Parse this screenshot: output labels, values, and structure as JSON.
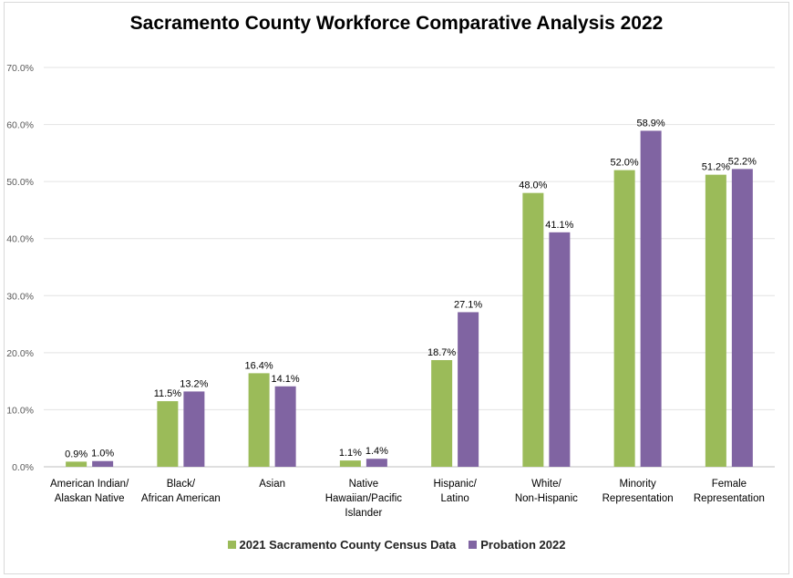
{
  "chart_data": {
    "type": "bar",
    "title": "Sacramento County Workforce Comparative Analysis 2022",
    "categories": [
      [
        "American Indian/",
        "Alaskan Native"
      ],
      [
        "Black/",
        "African American"
      ],
      [
        "Asian"
      ],
      [
        "Native",
        "Hawaiian/Pacific",
        "Islander"
      ],
      [
        "Hispanic/",
        "Latino"
      ],
      [
        "White/",
        "Non-Hispanic"
      ],
      [
        "Minority",
        "Representation"
      ],
      [
        "Female",
        "Representation"
      ]
    ],
    "series": [
      {
        "name": "2021 Sacramento County Census Data",
        "color": "#9BBB59",
        "values": [
          0.9,
          11.5,
          16.4,
          1.1,
          18.7,
          48.0,
          52.0,
          51.2
        ]
      },
      {
        "name": "Probation 2022",
        "color": "#8064A2",
        "values": [
          1.0,
          13.2,
          14.1,
          1.4,
          27.1,
          41.1,
          58.9,
          52.2
        ]
      }
    ],
    "ylim": [
      0,
      70
    ],
    "yticks": [
      "0.0%",
      "10.0%",
      "20.0%",
      "30.0%",
      "40.0%",
      "50.0%",
      "60.0%",
      "70.0%"
    ],
    "grid": true,
    "legend": "bottom"
  }
}
